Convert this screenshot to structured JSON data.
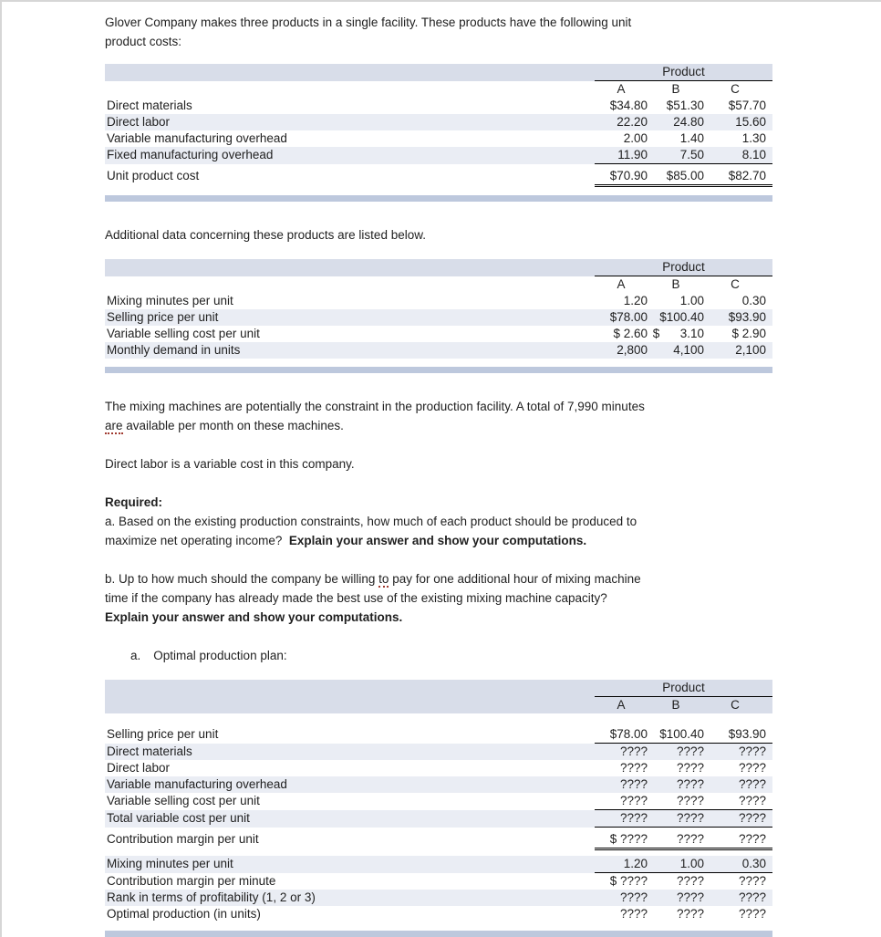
{
  "text": {
    "intro_l1": "Glover Company makes three products in a single facility. These products have the following unit",
    "intro_l2": "product costs:",
    "additional": "Additional data concerning these products are listed below.",
    "constraint_l1": "The mixing machines are potentially the constraint in the production facility. A total of 7,990 minutes",
    "constraint_word": "are",
    "constraint_l2_rest": " available per month on these machines.",
    "direct_labor_note": "Direct labor is a variable cost in this company.",
    "required_label": "Required:",
    "req_a_l1": "a. Based on the existing production constraints, how much of each product should be produced to",
    "req_a_l2": "maximize net operating income?  ",
    "req_a_bold": "Explain your answer and show your computations.",
    "req_b_l1a": "b. Up to how much should the company be willing ",
    "req_b_word": "to",
    "req_b_l1b": " pay for one additional hour of mixing machine",
    "req_b_l2": "time if the company has already made the best use of the existing mixing machine capacity?",
    "req_b_bold": "Explain your answer and show your computations.",
    "plan_letter": "a.",
    "plan_label": "Optimal production plan:"
  },
  "tables": {
    "product_header": "Product",
    "col_a": "A",
    "col_b": "B",
    "col_c": "C",
    "unit_costs": {
      "rows": [
        {
          "label": "Direct materials",
          "a": "$34.80",
          "b": "$51.30",
          "c": "$57.70"
        },
        {
          "label": "Direct labor",
          "a": "22.20",
          "b": "24.80",
          "c": "15.60"
        },
        {
          "label": "Variable manufacturing overhead",
          "a": "2.00",
          "b": "1.40",
          "c": "1.30"
        },
        {
          "label": "Fixed manufacturing overhead",
          "a": "11.90",
          "b": "7.50",
          "c": "8.10"
        },
        {
          "label": "Unit product cost",
          "a": "$70.90",
          "b": "$85.00",
          "c": "$82.70"
        }
      ]
    },
    "additional_data": {
      "rows": [
        {
          "label": "Mixing minutes per unit",
          "a": "1.20",
          "b": "1.00",
          "c": "0.30"
        },
        {
          "label": "Selling price per unit",
          "a": "$78.00",
          "b": "$100.40",
          "c": "$93.90"
        },
        {
          "label": "Variable selling cost per unit",
          "a": "$ 2.60",
          "b": "$      3.10",
          "c": "$ 2.90"
        },
        {
          "label": "Monthly demand in units",
          "a": "2,800",
          "b": "4,100",
          "c": "2,100"
        }
      ]
    },
    "plan": {
      "rows": [
        {
          "label": "Selling price per unit",
          "a": "$78.00",
          "b": "$100.40",
          "c": "$93.90"
        },
        {
          "label": "Direct materials",
          "a": "????",
          "b": "????",
          "c": "????"
        },
        {
          "label": "Direct labor",
          "a": "????",
          "b": "????",
          "c": "????"
        },
        {
          "label": "Variable manufacturing overhead",
          "a": "????",
          "b": "????",
          "c": "????"
        },
        {
          "label": "Variable selling cost per unit",
          "a": "????",
          "b": "????",
          "c": "????"
        },
        {
          "label": "Total variable cost per unit",
          "a": "????",
          "b": "????",
          "c": "????"
        },
        {
          "label": "Contribution margin per unit",
          "a": "$ ????",
          "b": "????",
          "c": "????"
        },
        {
          "label": "Mixing minutes per unit",
          "a": "1.20",
          "b": "1.00",
          "c": "0.30"
        },
        {
          "label": "Contribution margin per minute",
          "a": "$ ????",
          "b": "????",
          "c": "????"
        },
        {
          "label": "Rank in terms of profitability (1, 2 or 3)",
          "a": "????",
          "b": "????",
          "c": "????"
        },
        {
          "label": "Optimal production (in units)",
          "a": "????",
          "b": "????",
          "c": "????"
        }
      ]
    }
  },
  "colors": {
    "header_row": "#d8dde9",
    "zebra_row": "#eaedf4",
    "table_bar": "#bdc8dd",
    "squiggle": "#a0392f"
  }
}
